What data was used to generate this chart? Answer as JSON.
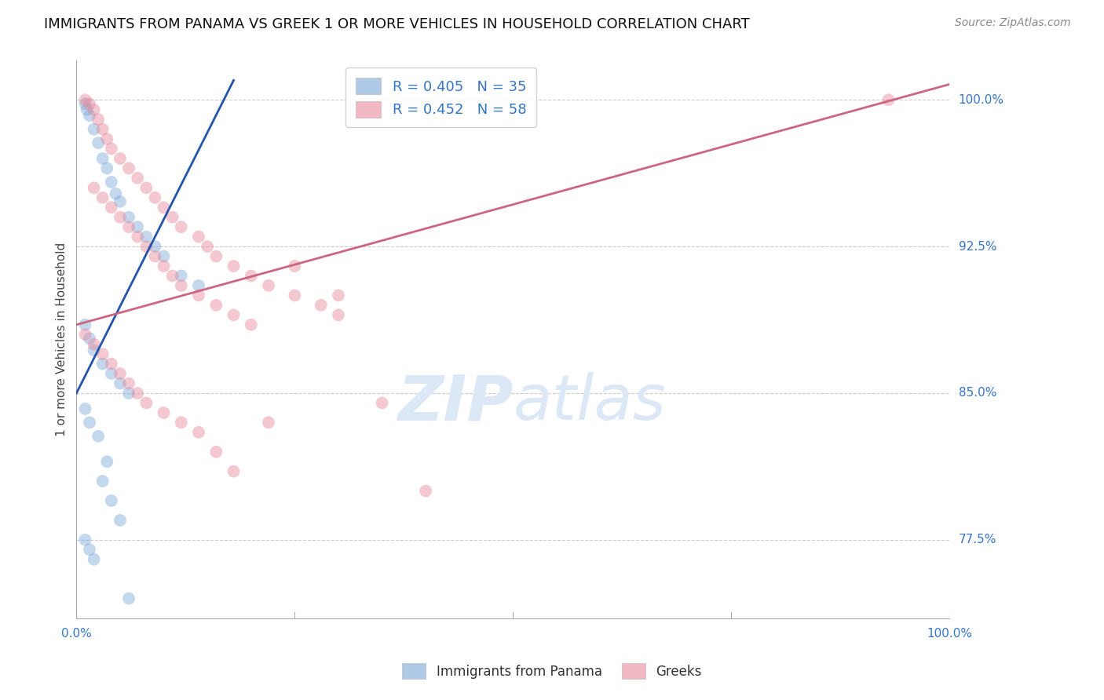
{
  "title": "IMMIGRANTS FROM PANAMA VS GREEK 1 OR MORE VEHICLES IN HOUSEHOLD CORRELATION CHART",
  "source": "Source: ZipAtlas.com",
  "ylabel": "1 or more Vehicles in Household",
  "xlim": [
    0.0,
    100.0
  ],
  "ylim": [
    73.5,
    102.0
  ],
  "yticks": [
    77.5,
    85.0,
    92.5,
    100.0
  ],
  "ytick_labels": [
    "77.5%",
    "85.0%",
    "92.5%",
    "100.0%"
  ],
  "legend_label_blue": "R = 0.405   N = 35",
  "legend_label_pink": "R = 0.452   N = 58",
  "blue_scatter_x": [
    1.0,
    1.2,
    1.5,
    2.0,
    2.5,
    3.0,
    3.5,
    4.0,
    4.5,
    5.0,
    6.0,
    7.0,
    8.0,
    9.0,
    10.0,
    12.0,
    14.0,
    1.0,
    1.5,
    2.0,
    3.0,
    4.0,
    5.0,
    6.0,
    1.0,
    1.5,
    2.5,
    3.5,
    1.0,
    1.5,
    2.0,
    3.0,
    4.0,
    5.0,
    6.0
  ],
  "blue_scatter_y": [
    99.8,
    99.5,
    99.2,
    98.5,
    97.8,
    97.0,
    96.5,
    95.8,
    95.2,
    94.8,
    94.0,
    93.5,
    93.0,
    92.5,
    92.0,
    91.0,
    90.5,
    88.5,
    87.8,
    87.2,
    86.5,
    86.0,
    85.5,
    85.0,
    84.2,
    83.5,
    82.8,
    81.5,
    77.5,
    77.0,
    76.5,
    80.5,
    79.5,
    78.5,
    74.5
  ],
  "pink_scatter_x": [
    1.0,
    1.5,
    2.0,
    2.5,
    3.0,
    3.5,
    4.0,
    5.0,
    6.0,
    7.0,
    8.0,
    9.0,
    10.0,
    11.0,
    12.0,
    14.0,
    15.0,
    16.0,
    18.0,
    20.0,
    22.0,
    25.0,
    28.0,
    30.0,
    2.0,
    3.0,
    4.0,
    5.0,
    6.0,
    7.0,
    8.0,
    9.0,
    10.0,
    11.0,
    12.0,
    14.0,
    16.0,
    18.0,
    20.0,
    1.0,
    2.0,
    3.0,
    4.0,
    5.0,
    6.0,
    7.0,
    8.0,
    10.0,
    12.0,
    14.0,
    16.0,
    18.0,
    35.0,
    93.0,
    40.0,
    25.0,
    30.0,
    22.0
  ],
  "pink_scatter_y": [
    100.0,
    99.8,
    99.5,
    99.0,
    98.5,
    98.0,
    97.5,
    97.0,
    96.5,
    96.0,
    95.5,
    95.0,
    94.5,
    94.0,
    93.5,
    93.0,
    92.5,
    92.0,
    91.5,
    91.0,
    90.5,
    90.0,
    89.5,
    89.0,
    95.5,
    95.0,
    94.5,
    94.0,
    93.5,
    93.0,
    92.5,
    92.0,
    91.5,
    91.0,
    90.5,
    90.0,
    89.5,
    89.0,
    88.5,
    88.0,
    87.5,
    87.0,
    86.5,
    86.0,
    85.5,
    85.0,
    84.5,
    84.0,
    83.5,
    83.0,
    82.0,
    81.0,
    84.5,
    100.0,
    80.0,
    91.5,
    90.0,
    83.5
  ],
  "blue_line_x": [
    0.0,
    18.0
  ],
  "blue_line_y": [
    85.0,
    101.0
  ],
  "pink_line_x": [
    0.0,
    100.0
  ],
  "pink_line_y": [
    88.5,
    100.8
  ],
  "scatter_alpha": 0.45,
  "scatter_size": 130,
  "blue_color": "#7aa8d8",
  "pink_color": "#e8879a",
  "blue_line_color": "#2255aa",
  "pink_line_color": "#cc6680",
  "background_color": "#ffffff",
  "grid_color": "#cccccc",
  "watermark_color": "#dce8f5",
  "title_fontsize": 13,
  "axis_label_fontsize": 11,
  "tick_fontsize": 11,
  "legend_fontsize": 13,
  "source_fontsize": 10
}
